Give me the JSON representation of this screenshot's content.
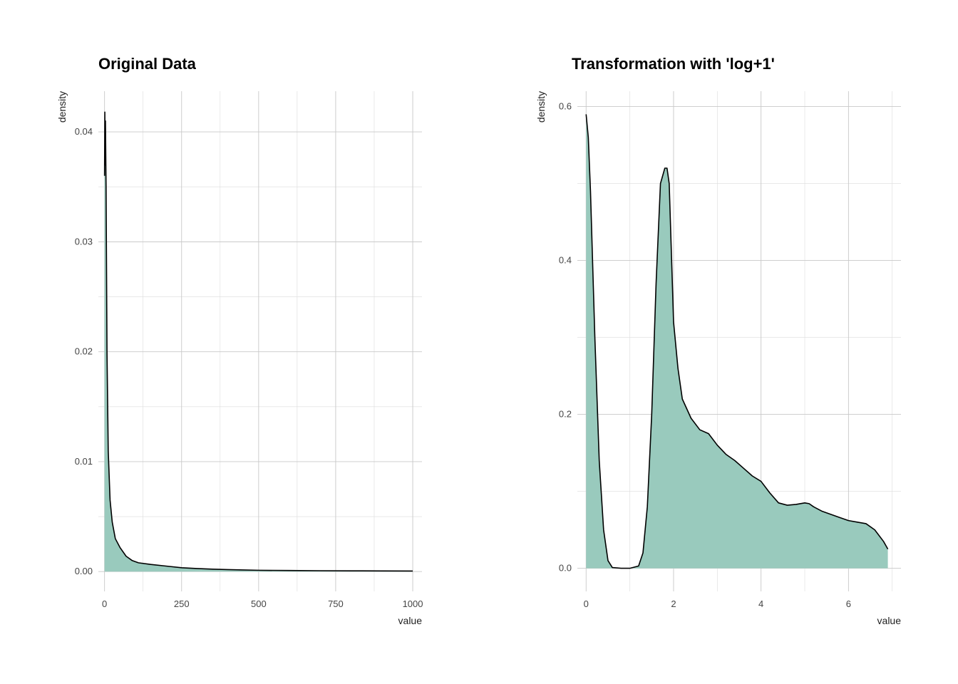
{
  "colors": {
    "fill": "#99cabd",
    "line": "#000000",
    "grid": "#c8c8c8"
  },
  "chart_data": [
    {
      "type": "area",
      "title": "Original Data",
      "xlabel": "value",
      "ylabel": "density",
      "xlim": [
        -20,
        1030
      ],
      "ylim": [
        -0.0018,
        0.0437
      ],
      "xticks": [
        0,
        250,
        500,
        750,
        1000
      ],
      "xtick_labels": [
        "0",
        "250",
        "500",
        "750",
        "1000"
      ],
      "yticks": [
        0.0,
        0.01,
        0.02,
        0.03,
        0.04
      ],
      "ytick_labels": [
        "0.00",
        "0.01",
        "0.02",
        "0.03",
        "0.04"
      ],
      "grid": true,
      "x": [
        0,
        1,
        2,
        3,
        5,
        8,
        12,
        18,
        25,
        35,
        50,
        70,
        90,
        110,
        150,
        200,
        250,
        300,
        350,
        400,
        450,
        500,
        600,
        700,
        800,
        900,
        1000
      ],
      "y": [
        0.036,
        0.0418,
        0.037,
        0.041,
        0.035,
        0.02,
        0.011,
        0.0065,
        0.0045,
        0.003,
        0.0022,
        0.0014,
        0.001,
        0.0008,
        0.00065,
        0.0005,
        0.00035,
        0.00028,
        0.00022,
        0.00018,
        0.00015,
        0.00012,
        0.0001,
        8e-05,
        7e-05,
        6e-05,
        5e-05
      ]
    },
    {
      "type": "area",
      "title": "Transformation with 'log+1'",
      "xlabel": "value",
      "ylabel": "density",
      "xlim": [
        -0.2,
        7.2
      ],
      "ylim": [
        -0.03,
        0.62
      ],
      "xticks": [
        0,
        2,
        4,
        6
      ],
      "xtick_labels": [
        "0",
        "2",
        "4",
        "6"
      ],
      "yticks": [
        0.0,
        0.2,
        0.4,
        0.6
      ],
      "ytick_labels": [
        "0.0",
        "0.2",
        "0.4",
        "0.6"
      ],
      "grid": true,
      "x": [
        0,
        0.05,
        0.1,
        0.2,
        0.3,
        0.4,
        0.5,
        0.6,
        0.8,
        1.0,
        1.2,
        1.3,
        1.4,
        1.5,
        1.6,
        1.7,
        1.8,
        1.85,
        1.9,
        2.0,
        2.1,
        2.2,
        2.4,
        2.6,
        2.8,
        3.0,
        3.2,
        3.4,
        3.6,
        3.8,
        4.0,
        4.2,
        4.4,
        4.6,
        4.8,
        5.0,
        5.1,
        5.2,
        5.4,
        5.6,
        5.8,
        6.0,
        6.2,
        6.4,
        6.6,
        6.8,
        6.9
      ],
      "y": [
        0.59,
        0.56,
        0.49,
        0.3,
        0.14,
        0.05,
        0.01,
        0.001,
        0.0,
        0.0,
        0.003,
        0.02,
        0.08,
        0.2,
        0.37,
        0.5,
        0.52,
        0.52,
        0.5,
        0.32,
        0.26,
        0.22,
        0.195,
        0.18,
        0.175,
        0.16,
        0.148,
        0.14,
        0.13,
        0.12,
        0.113,
        0.098,
        0.085,
        0.082,
        0.083,
        0.085,
        0.084,
        0.08,
        0.074,
        0.07,
        0.066,
        0.062,
        0.06,
        0.058,
        0.05,
        0.035,
        0.025
      ]
    }
  ]
}
